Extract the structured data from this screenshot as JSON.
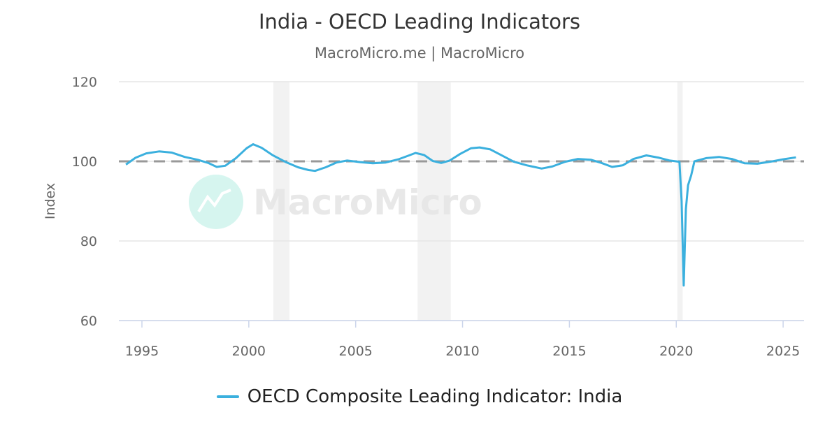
{
  "title": "India - OECD Leading Indicators",
  "subtitle": "MacroMicro.me | MacroMicro",
  "watermark": "MacroMicro",
  "chart_data": {
    "type": "line",
    "title": "India - OECD Leading Indicators",
    "ylabel": "Index",
    "xlabel": "",
    "xlim": [
      1994,
      2026
    ],
    "ylim": [
      60,
      120
    ],
    "xticks": [
      "1995",
      "2000",
      "2005",
      "2010",
      "2015",
      "2020",
      "2025"
    ],
    "yticks": [
      "60",
      "80",
      "100",
      "120"
    ],
    "grid": true,
    "legend": "bottom",
    "reference_line": {
      "value": 100,
      "style": "dashed",
      "color": "#999999"
    },
    "shaded_periods": [
      [
        2001.15,
        2001.9
      ],
      [
        2007.9,
        2009.45
      ],
      [
        2020.05,
        2020.3
      ]
    ],
    "series": [
      {
        "name": "OECD Composite Leading Indicator: India",
        "color": "#3bb0de",
        "x": [
          1994.25,
          1994.7,
          1995.2,
          1995.8,
          1996.4,
          1997.0,
          1997.6,
          1998.1,
          1998.5,
          1998.9,
          1999.4,
          1999.9,
          2000.2,
          2000.6,
          2001.1,
          2001.7,
          2002.3,
          2002.8,
          2003.1,
          2003.6,
          2004.1,
          2004.6,
          2005.2,
          2005.8,
          2006.4,
          2007.0,
          2007.5,
          2007.8,
          2008.2,
          2008.6,
          2009.0,
          2009.4,
          2009.9,
          2010.4,
          2010.8,
          2011.3,
          2011.8,
          2012.4,
          2013.0,
          2013.7,
          2014.2,
          2014.8,
          2015.4,
          2016.0,
          2016.5,
          2017.0,
          2017.5,
          2018.0,
          2018.6,
          2019.2,
          2019.7,
          2020.15,
          2020.25,
          2020.35,
          2020.45,
          2020.55,
          2020.7,
          2020.85,
          2021.4,
          2022.0,
          2022.6,
          2023.2,
          2023.8,
          2024.5,
          2025.0,
          2025.6
        ],
        "y": [
          99.2,
          100.9,
          102.0,
          102.5,
          102.2,
          101.1,
          100.4,
          99.6,
          98.6,
          98.9,
          100.8,
          103.3,
          104.3,
          103.4,
          101.6,
          99.9,
          98.5,
          97.8,
          97.6,
          98.5,
          99.7,
          100.2,
          99.8,
          99.5,
          99.7,
          100.5,
          101.5,
          102.1,
          101.6,
          100.1,
          99.6,
          100.2,
          101.9,
          103.3,
          103.5,
          103.0,
          101.6,
          99.9,
          99.0,
          98.2,
          98.7,
          99.9,
          100.6,
          100.4,
          99.6,
          98.6,
          99.0,
          100.6,
          101.5,
          100.9,
          100.2,
          99.9,
          90.0,
          68.8,
          88.0,
          94.0,
          96.5,
          100.0,
          100.8,
          101.1,
          100.6,
          99.5,
          99.4,
          100.0,
          100.5,
          101.0
        ]
      }
    ]
  }
}
